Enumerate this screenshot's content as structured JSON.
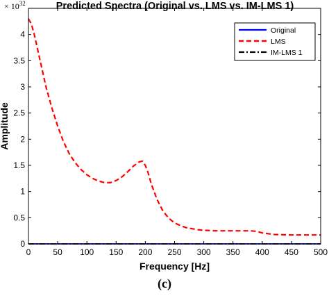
{
  "chart_data": {
    "type": "line",
    "title": "Predicted Spectra (Original vs. LMS vs. IM-LMS 1)",
    "xlabel": "Frequency [Hz]",
    "ylabel": "Amplitude",
    "y_exponent_base": "× 10",
    "y_exponent_power": "32",
    "xlim": [
      0,
      500
    ],
    "ylim": [
      0,
      4.5
    ],
    "x_ticks": [
      "0",
      "50",
      "100",
      "150",
      "200",
      "250",
      "300",
      "350",
      "400",
      "450",
      "500"
    ],
    "y_ticks": [
      "0",
      "0.5",
      "1",
      "1.5",
      "2",
      "2.5",
      "3",
      "3.5",
      "4"
    ],
    "grid": false,
    "legend_position": "top-right",
    "series": [
      {
        "name": "Original",
        "color": "#0000ff",
        "style": "solid",
        "x": [
          0,
          500
        ],
        "y": [
          0,
          0
        ]
      },
      {
        "name": "LMS",
        "color": "#ff0000",
        "style": "dashed",
        "x": [
          0,
          5,
          10,
          20,
          30,
          40,
          50,
          60,
          70,
          80,
          90,
          100,
          110,
          120,
          130,
          140,
          150,
          160,
          170,
          180,
          190,
          195,
          200,
          205,
          210,
          220,
          230,
          240,
          250,
          260,
          270,
          280,
          290,
          300,
          320,
          340,
          360,
          380,
          390,
          400,
          420,
          450,
          480,
          500
        ],
        "y": [
          4.3,
          4.2,
          4.0,
          3.5,
          3.0,
          2.6,
          2.25,
          1.95,
          1.72,
          1.55,
          1.42,
          1.32,
          1.25,
          1.2,
          1.17,
          1.17,
          1.21,
          1.28,
          1.38,
          1.49,
          1.57,
          1.58,
          1.5,
          1.35,
          1.15,
          0.85,
          0.63,
          0.49,
          0.4,
          0.35,
          0.31,
          0.29,
          0.27,
          0.26,
          0.25,
          0.25,
          0.25,
          0.25,
          0.24,
          0.21,
          0.18,
          0.17,
          0.17,
          0.17
        ]
      },
      {
        "name": "IM-LMS 1",
        "color": "#000000",
        "style": "dashdot",
        "x": [
          0,
          500
        ],
        "y": [
          0,
          0
        ]
      }
    ]
  },
  "caption": "(c)"
}
